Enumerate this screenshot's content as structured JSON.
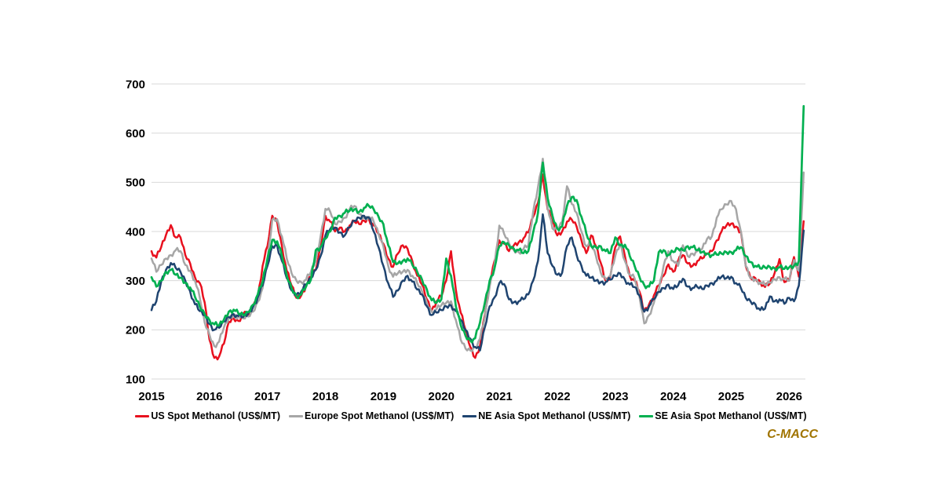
{
  "watermark": {
    "text": "C-MACC",
    "color": "#a07400"
  },
  "chart_data": {
    "type": "line",
    "title": "",
    "xlabel": "",
    "ylabel": "",
    "grid": "horizontal-only",
    "gridline_color": "#d9d9d9",
    "background": "#ffffff",
    "legend_position": "bottom-center",
    "ylim": [
      100,
      700
    ],
    "y_ticks": [
      100,
      200,
      300,
      400,
      500,
      600,
      700
    ],
    "x_tick_labels": [
      "2015",
      "2016",
      "2017",
      "2018",
      "2019",
      "2020",
      "2021",
      "2022",
      "2023",
      "2024",
      "2025",
      "2026"
    ],
    "x_start_year": 2015,
    "x_end_year_fraction": 2026.28,
    "points_per_year": 12,
    "series": [
      {
        "name": "US Spot Methanol (US$/MT)",
        "color": "#e8101e",
        "values": [
          360,
          347,
          368,
          393,
          413,
          388,
          388,
          352,
          335,
          307,
          295,
          256,
          180,
          143,
          146,
          172,
          216,
          223,
          218,
          233,
          229,
          247,
          267,
          330,
          370,
          432,
          420,
          370,
          320,
          290,
          265,
          270,
          290,
          308,
          322,
          368,
          432,
          420,
          400,
          408,
          400,
          412,
          420,
          415,
          422,
          425,
          412,
          395,
          375,
          345,
          328,
          355,
          372,
          365,
          340,
          310,
          292,
          262,
          240,
          258,
          268,
          300,
          360,
          282,
          235,
          200,
          165,
          143,
          168,
          230,
          295,
          340,
          382,
          375,
          360,
          372,
          378,
          386,
          398,
          430,
          458,
          516,
          445,
          420,
          392,
          400,
          420,
          424,
          410,
          382,
          356,
          392,
          370,
          336,
          300,
          310,
          368,
          390,
          350,
          310,
          300,
          278,
          237,
          252,
          270,
          290,
          310,
          333,
          318,
          340,
          352,
          335,
          330,
          340,
          345,
          355,
          360,
          382,
          400,
          412,
          416,
          410,
          400,
          330,
          305,
          305,
          298,
          287,
          294,
          316,
          344,
          297,
          300,
          348,
          308,
          421
        ]
      },
      {
        "name": "Europe Spot Methanol (US$/MT)",
        "color": "#a6a6a6",
        "values": [
          345,
          318,
          332,
          345,
          352,
          362,
          360,
          332,
          320,
          300,
          265,
          215,
          190,
          167,
          176,
          205,
          223,
          231,
          226,
          223,
          227,
          237,
          257,
          285,
          340,
          424,
          425,
          390,
          345,
          315,
          300,
          297,
          302,
          318,
          340,
          390,
          446,
          440,
          415,
          420,
          428,
          445,
          452,
          435,
          428,
          430,
          420,
          395,
          370,
          330,
          308,
          315,
          318,
          322,
          310,
          295,
          278,
          255,
          237,
          242,
          250,
          255,
          258,
          220,
          180,
          162,
          158,
          165,
          182,
          225,
          288,
          332,
          412,
          395,
          376,
          362,
          358,
          364,
          372,
          440,
          490,
          548,
          448,
          406,
          406,
          420,
          492,
          456,
          438,
          400,
          370,
          374,
          350,
          316,
          304,
          310,
          350,
          375,
          340,
          312,
          305,
          268,
          213,
          230,
          255,
          280,
          330,
          360,
          340,
          330,
          372,
          350,
          355,
          360,
          365,
          385,
          390,
          428,
          445,
          455,
          462,
          445,
          400,
          330,
          305,
          302,
          296,
          291,
          296,
          303,
          307,
          303,
          300,
          342,
          320,
          520
        ]
      },
      {
        "name": "NE Asia Spot Methanol (US$/MT)",
        "color": "#1f4470",
        "values": [
          240,
          258,
          298,
          322,
          336,
          326,
          318,
          300,
          278,
          252,
          238,
          230,
          212,
          200,
          204,
          217,
          226,
          232,
          228,
          226,
          233,
          246,
          266,
          290,
          330,
          370,
          372,
          340,
          305,
          280,
          272,
          278,
          292,
          305,
          322,
          350,
          392,
          405,
          408,
          398,
          392,
          408,
          422,
          428,
          432,
          428,
          400,
          368,
          330,
          295,
          267,
          280,
          300,
          310,
          298,
          282,
          272,
          248,
          230,
          235,
          240,
          248,
          250,
          238,
          220,
          200,
          182,
          165,
          158,
          205,
          248,
          266,
          295,
          293,
          262,
          256,
          258,
          262,
          272,
          300,
          340,
          435,
          356,
          330,
          312,
          316,
          370,
          388,
          352,
          330,
          310,
          306,
          300,
          297,
          297,
          302,
          310,
          315,
          302,
          292,
          287,
          270,
          237,
          248,
          262,
          277,
          285,
          292,
          283,
          290,
          304,
          288,
          285,
          287,
          283,
          290,
          295,
          300,
          308,
          305,
          308,
          295,
          285,
          265,
          258,
          252,
          240,
          243,
          268,
          258,
          262,
          253,
          265,
          258,
          290,
          402
        ]
      },
      {
        "name": "SE Asia Spot Methanol (US$/MT)",
        "color": "#00b050",
        "values": [
          307,
          288,
          300,
          318,
          322,
          312,
          306,
          296,
          286,
          267,
          247,
          232,
          220,
          211,
          209,
          221,
          237,
          241,
          233,
          230,
          236,
          251,
          272,
          298,
          345,
          383,
          380,
          350,
          310,
          285,
          268,
          272,
          288,
          302,
          362,
          368,
          385,
          400,
          428,
          432,
          438,
          442,
          445,
          440,
          448,
          452,
          445,
          430,
          415,
          372,
          338,
          335,
          340,
          345,
          332,
          318,
          302,
          282,
          260,
          255,
          262,
          345,
          310,
          248,
          210,
          188,
          178,
          183,
          215,
          255,
          300,
          325,
          370,
          378,
          372,
          365,
          362,
          356,
          360,
          398,
          438,
          540,
          468,
          432,
          406,
          410,
          452,
          470,
          464,
          430,
          396,
          370,
          368,
          370,
          360,
          356,
          388,
          372,
          373,
          350,
          330,
          308,
          291,
          288,
          300,
          358,
          362,
          352,
          358,
          365,
          362,
          370,
          368,
          362,
          358,
          355,
          352,
          353,
          355,
          358,
          358,
          362,
          368,
          350,
          338,
          330,
          325,
          327,
          328,
          325,
          327,
          324,
          327,
          330,
          340,
          655
        ]
      }
    ]
  }
}
